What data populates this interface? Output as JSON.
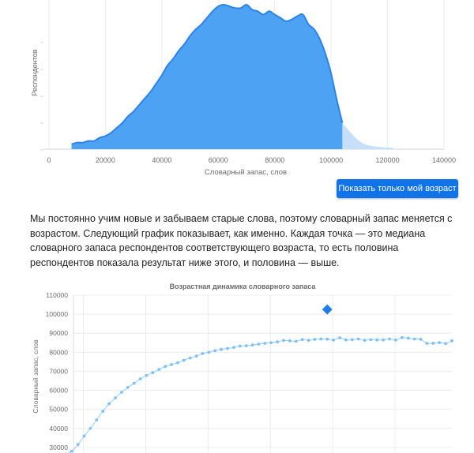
{
  "button": {
    "label": "Показать только мой возраст"
  },
  "paragraph": "Мы постоянно учим новые и забываем старые слова, поэтому словарный запас меняется с возрастом. Следующий график показывает, как именно. Каждая точка — это медиана словарного запаса респондентов соответствующего возраста, то есть половина респондентов показала результат ниже этого, и половина — выше.",
  "colors": {
    "fill": "#4da2f4",
    "fill_light": "#c6e0fb",
    "line": "#2c83e6",
    "dots": "#7ec0f8",
    "marker": "#1f7fe6",
    "button": "#1173e8"
  },
  "chart_data": [
    {
      "type": "area",
      "title": "",
      "xlabel": "Словарный запас, слов",
      "ylabel": "Респондентов",
      "xlim": [
        0,
        140000
      ],
      "xticks": [
        "0",
        "20000",
        "40000",
        "60000",
        "80000",
        "100000",
        "120000",
        "140000"
      ],
      "grid": true,
      "highlight_max_x": 104000,
      "x": [
        8000,
        10000,
        12000,
        14000,
        16000,
        18000,
        20000,
        22000,
        24000,
        26000,
        28000,
        30000,
        32000,
        34000,
        36000,
        38000,
        40000,
        42000,
        44000,
        46000,
        48000,
        50000,
        52000,
        54000,
        56000,
        58000,
        60000,
        62000,
        64000,
        66000,
        68000,
        70000,
        72000,
        74000,
        76000,
        78000,
        80000,
        82000,
        84000,
        86000,
        88000,
        90000,
        92000,
        94000,
        96000,
        98000,
        100000,
        102000,
        104000,
        106000,
        108000,
        110000,
        112000,
        114000,
        116000,
        118000,
        120000,
        122000
      ],
      "values": [
        3,
        4,
        4,
        5,
        5,
        7,
        8,
        10,
        13,
        16,
        20,
        23,
        27,
        31,
        35,
        40,
        45,
        51,
        55,
        60,
        64,
        69,
        73,
        76,
        80,
        84,
        87,
        88,
        87,
        86,
        86,
        88,
        85,
        84,
        82,
        84,
        82,
        80,
        78,
        79,
        81,
        82,
        76,
        73,
        67,
        58,
        46,
        30,
        16,
        12,
        8,
        5,
        3,
        2,
        1.5,
        1.2,
        1,
        0.8
      ]
    },
    {
      "type": "scatter",
      "title": "Возрастная динамика словарного запаса",
      "xlabel": "",
      "ylabel": "Словарный запас, слов",
      "ylim": [
        25000,
        110000
      ],
      "yticks": [
        "30000",
        "40000",
        "50000",
        "60000",
        "70000",
        "80000",
        "90000",
        "100000",
        "110000"
      ],
      "grid": true,
      "series": [
        {
          "x": [
            7,
            8,
            9,
            10,
            11,
            12,
            13,
            14,
            15,
            16,
            17,
            18,
            19,
            20,
            21,
            22,
            23,
            24,
            25,
            26,
            27,
            28,
            29,
            30,
            31,
            32,
            33,
            34,
            35,
            36,
            37,
            38,
            39,
            40,
            41,
            42,
            43,
            44,
            45,
            46,
            47,
            48,
            49,
            50,
            51,
            52,
            53,
            54,
            55,
            56,
            57,
            58,
            59,
            60,
            61,
            62,
            63,
            64,
            65,
            66,
            67,
            68,
            69,
            70
          ],
          "values": [
            25500,
            26500,
            28000,
            31500,
            36000,
            40000,
            44500,
            49000,
            53000,
            56000,
            59000,
            61500,
            63700,
            66000,
            67800,
            69300,
            71000,
            72500,
            73500,
            74500,
            75800,
            77000,
            78000,
            79300,
            80000,
            80800,
            81500,
            82000,
            82500,
            83200,
            83400,
            83800,
            84300,
            84700,
            85000,
            85500,
            86200,
            86000,
            85800,
            86700,
            86300,
            86800,
            87000,
            86900,
            86400,
            87600,
            86500,
            86600,
            87000,
            86300,
            86600,
            86500,
            86500,
            87000,
            86400,
            87700,
            87400,
            87000,
            86800,
            84700,
            84700,
            85100,
            84600,
            86000
          ]
        },
        {
          "x": [
            50
          ],
          "values": [
            102500
          ]
        }
      ]
    }
  ]
}
